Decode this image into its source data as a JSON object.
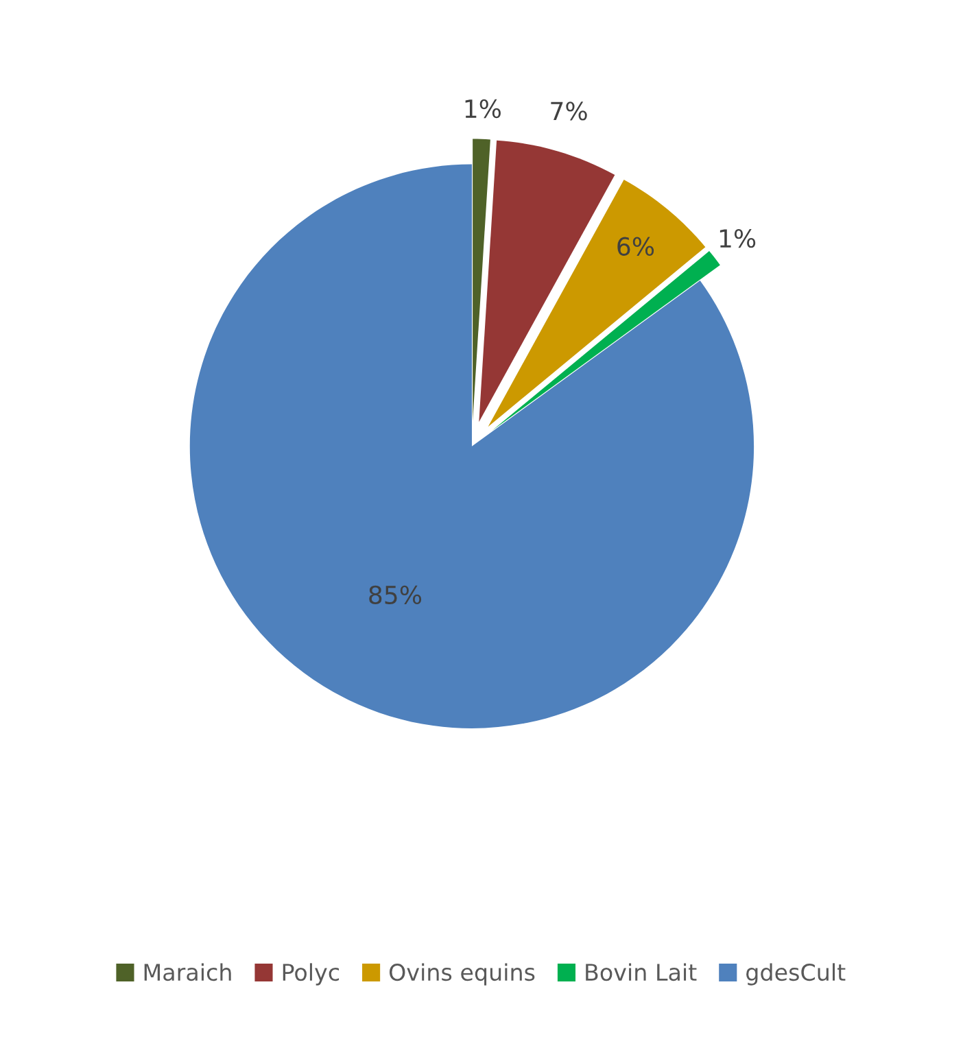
{
  "chart_data": {
    "type": "pie",
    "categories": [
      "Maraich",
      "Polyc",
      "Ovins equins",
      "Bovin Lait",
      "gdesCult"
    ],
    "values": [
      1,
      7,
      6,
      1,
      85
    ],
    "colors": [
      "#4f6228",
      "#953735",
      "#cc9900",
      "#00b050",
      "#4f81bd"
    ],
    "value_labels": [
      "1%",
      "7%",
      "6%",
      "1%",
      "85%"
    ],
    "legend": "bottom"
  }
}
